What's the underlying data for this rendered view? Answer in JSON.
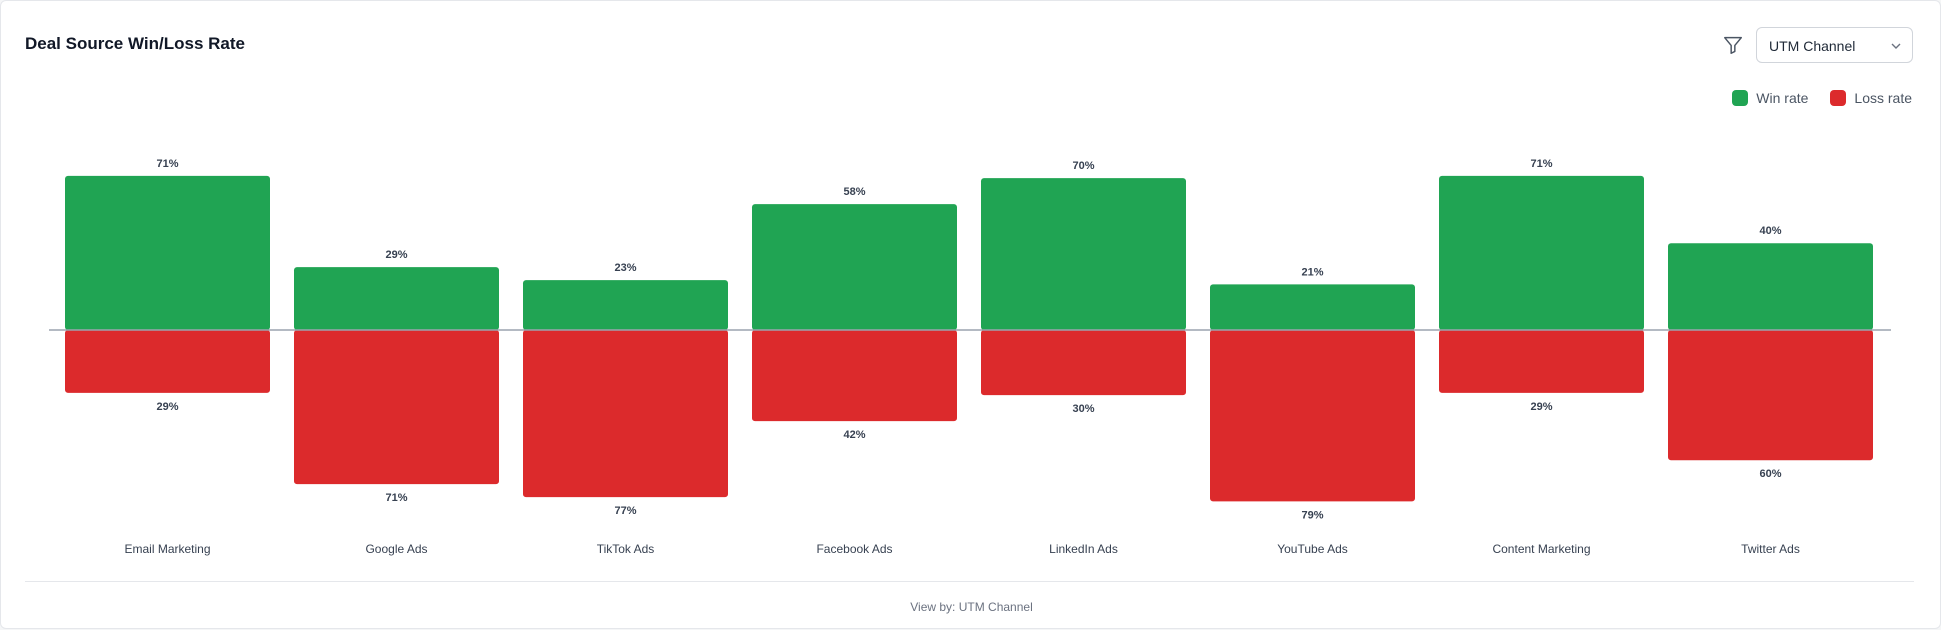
{
  "header": {
    "title": "Deal Source Win/Loss Rate",
    "filter_icon": "filter-icon",
    "view_select": {
      "value": "UTM Channel",
      "icon": "chevron-down-icon"
    }
  },
  "legend": [
    {
      "label": "Win rate",
      "color": "#20a453"
    },
    {
      "label": "Loss rate",
      "color": "#dc2a2c"
    }
  ],
  "footer": {
    "view_by": "View by: UTM Channel"
  },
  "chart_data": {
    "type": "bar",
    "title": "Deal Source Win/Loss Rate",
    "categories": [
      "Email Marketing",
      "Google Ads",
      "TikTok Ads",
      "Facebook Ads",
      "LinkedIn Ads",
      "YouTube Ads",
      "Content Marketing",
      "Twitter Ads"
    ],
    "series": [
      {
        "name": "Win rate",
        "values": [
          71,
          29,
          23,
          58,
          70,
          21,
          71,
          40
        ],
        "color": "#20a453"
      },
      {
        "name": "Loss rate",
        "values": [
          29,
          71,
          77,
          42,
          30,
          79,
          29,
          60
        ],
        "color": "#dc2a2c"
      }
    ],
    "value_format": "%",
    "legend_position": "top-right",
    "grid": false
  }
}
